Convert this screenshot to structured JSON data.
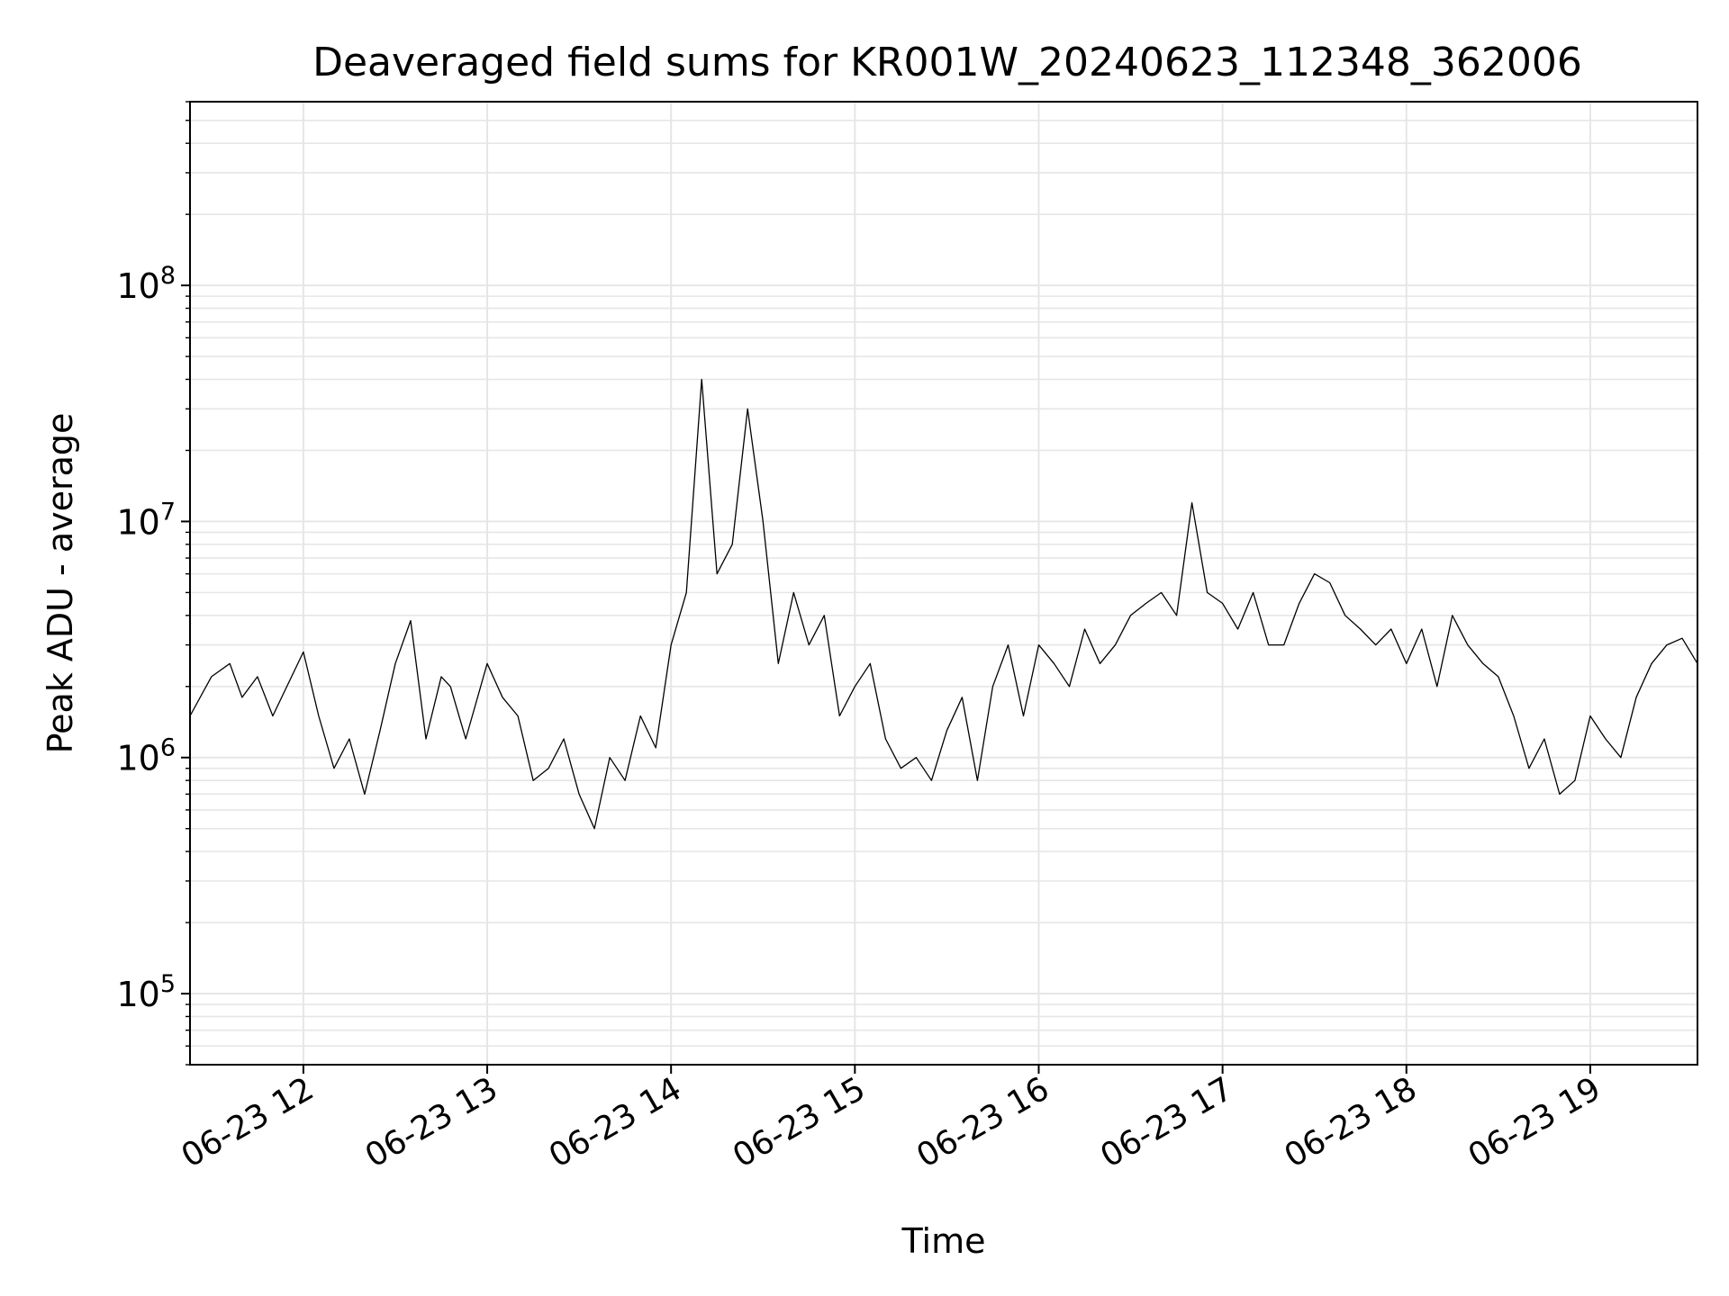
{
  "chart_data": {
    "type": "line",
    "title": "Deaveraged field sums for KR001W_20240623_112348_362006",
    "xlabel": "Time",
    "ylabel": "Peak ADU - average",
    "yscale": "log",
    "ylim": [
      50000,
      600000000
    ],
    "xlim": [
      "2024-06-23 11:23",
      "2024-06-23 19:35"
    ],
    "grid": true,
    "x_ticks": [
      "06-23 12",
      "06-23 13",
      "06-23 14",
      "06-23 15",
      "06-23 16",
      "06-23 17",
      "06-23 18",
      "06-23 19"
    ],
    "y_ticks": [
      {
        "base": "10",
        "exp": "5",
        "value": 100000
      },
      {
        "base": "10",
        "exp": "6",
        "value": 1000000
      },
      {
        "base": "10",
        "exp": "7",
        "value": 10000000
      },
      {
        "base": "10",
        "exp": "8",
        "value": 100000000
      }
    ],
    "line_color": "#000000",
    "series": [
      {
        "x": [
          "2024-06-23 11:23",
          "2024-06-23 11:30",
          "2024-06-23 11:36",
          "2024-06-23 11:40",
          "2024-06-23 11:45",
          "2024-06-23 11:50",
          "2024-06-23 12:00",
          "2024-06-23 12:05",
          "2024-06-23 12:10",
          "2024-06-23 12:15",
          "2024-06-23 12:20",
          "2024-06-23 12:25",
          "2024-06-23 12:30",
          "2024-06-23 12:35",
          "2024-06-23 12:40",
          "2024-06-23 12:45",
          "2024-06-23 12:48",
          "2024-06-23 12:53",
          "2024-06-23 13:00",
          "2024-06-23 13:05",
          "2024-06-23 13:10",
          "2024-06-23 13:15",
          "2024-06-23 13:20",
          "2024-06-23 13:25",
          "2024-06-23 13:30",
          "2024-06-23 13:35",
          "2024-06-23 13:40",
          "2024-06-23 13:45",
          "2024-06-23 13:50",
          "2024-06-23 13:55",
          "2024-06-23 14:00",
          "2024-06-23 14:05",
          "2024-06-23 14:10",
          "2024-06-23 14:15",
          "2024-06-23 14:20",
          "2024-06-23 14:25",
          "2024-06-23 14:30",
          "2024-06-23 14:35",
          "2024-06-23 14:40",
          "2024-06-23 14:45",
          "2024-06-23 14:50",
          "2024-06-23 14:55",
          "2024-06-23 15:00",
          "2024-06-23 15:05",
          "2024-06-23 15:10",
          "2024-06-23 15:15",
          "2024-06-23 15:20",
          "2024-06-23 15:25",
          "2024-06-23 15:30",
          "2024-06-23 15:35",
          "2024-06-23 15:40",
          "2024-06-23 15:45",
          "2024-06-23 15:50",
          "2024-06-23 15:55",
          "2024-06-23 16:00",
          "2024-06-23 16:05",
          "2024-06-23 16:10",
          "2024-06-23 16:15",
          "2024-06-23 16:20",
          "2024-06-23 16:25",
          "2024-06-23 16:30",
          "2024-06-23 16:35",
          "2024-06-23 16:40",
          "2024-06-23 16:45",
          "2024-06-23 16:50",
          "2024-06-23 16:55",
          "2024-06-23 17:00",
          "2024-06-23 17:05",
          "2024-06-23 17:10",
          "2024-06-23 17:15",
          "2024-06-23 17:20",
          "2024-06-23 17:25",
          "2024-06-23 17:30",
          "2024-06-23 17:35",
          "2024-06-23 17:40",
          "2024-06-23 17:45",
          "2024-06-23 17:50",
          "2024-06-23 17:55",
          "2024-06-23 18:00",
          "2024-06-23 18:05",
          "2024-06-23 18:10",
          "2024-06-23 18:15",
          "2024-06-23 18:20",
          "2024-06-23 18:25",
          "2024-06-23 18:30",
          "2024-06-23 18:35",
          "2024-06-23 18:40",
          "2024-06-23 18:45",
          "2024-06-23 18:50",
          "2024-06-23 18:55",
          "2024-06-23 19:00",
          "2024-06-23 19:05",
          "2024-06-23 19:10",
          "2024-06-23 19:15",
          "2024-06-23 19:20",
          "2024-06-23 19:25",
          "2024-06-23 19:30",
          "2024-06-23 19:35"
        ],
        "y": [
          1500000,
          2200000,
          2500000,
          1800000,
          2200000,
          1500000,
          2800000,
          1500000,
          900000,
          1200000,
          700000,
          1300000,
          2500000,
          3800000,
          1200000,
          2200000,
          2000000,
          1200000,
          2500000,
          1800000,
          1500000,
          800000,
          900000,
          1200000,
          700000,
          500000,
          1000000,
          800000,
          1500000,
          1100000,
          3000000,
          5000000,
          40000000,
          6000000,
          8000000,
          30000000,
          10000000,
          2500000,
          5000000,
          3000000,
          4000000,
          1500000,
          2000000,
          2500000,
          1200000,
          900000,
          1000000,
          800000,
          1300000,
          1800000,
          800000,
          2000000,
          3000000,
          1500000,
          3000000,
          2500000,
          2000000,
          3500000,
          2500000,
          3000000,
          4000000,
          4500000,
          5000000,
          4000000,
          12000000,
          5000000,
          4500000,
          3500000,
          5000000,
          3000000,
          3000000,
          4500000,
          6000000,
          5500000,
          4000000,
          3500000,
          3000000,
          3500000,
          2500000,
          3500000,
          2000000,
          4000000,
          3000000,
          2500000,
          2200000,
          1500000,
          900000,
          1200000,
          700000,
          800000,
          1500000,
          1200000,
          1000000,
          1800000,
          2500000,
          3000000,
          3200000,
          2500000
        ]
      }
    ]
  }
}
